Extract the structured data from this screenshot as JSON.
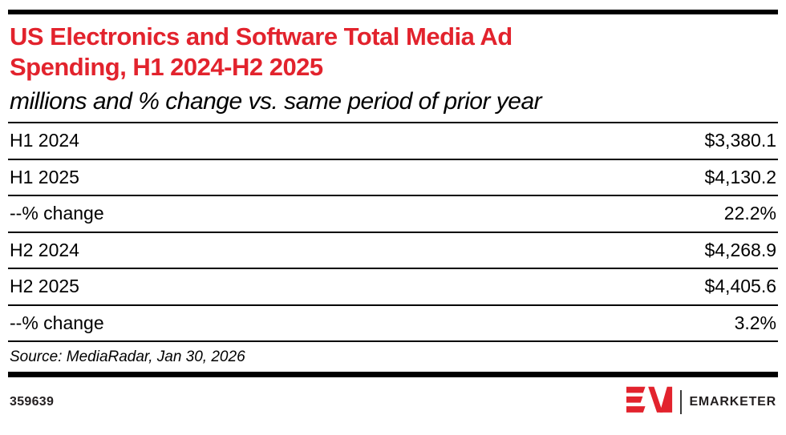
{
  "header": {
    "title_line1": "US Electronics and Software Total Media Ad",
    "title_line2": "Spending, H1 2024-H2 2025",
    "subtitle": "millions and % change vs. same period of prior year"
  },
  "table": {
    "rows": [
      {
        "label": "H1 2024",
        "value": "$3,380.1"
      },
      {
        "label": "H1 2025",
        "value": "$4,130.2"
      },
      {
        "label": "--% change",
        "value": "22.2%"
      },
      {
        "label": "H2 2024",
        "value": "$4,268.9"
      },
      {
        "label": "H2 2025",
        "value": "$4,405.6"
      },
      {
        "label": "--% change",
        "value": "3.2%"
      }
    ]
  },
  "source": "Source: MediaRadar, Jan 30, 2026",
  "footer": {
    "chart_id": "359639",
    "brand_name": "EMARKETER",
    "logo_icon": "emarketer-em-logo"
  },
  "colors": {
    "accent_red": "#e2232d",
    "line_black": "#000000",
    "brand_dark": "#231f20"
  },
  "chart_data": {
    "type": "table",
    "title": "US Electronics and Software Total Media Ad Spending, H1 2024-H2 2025",
    "subtitle": "millions and % change vs. same period of prior year",
    "rows": [
      [
        "H1 2024",
        "$3,380.1"
      ],
      [
        "H1 2025",
        "$4,130.2"
      ],
      [
        "--% change",
        "22.2%"
      ],
      [
        "H2 2024",
        "$4,268.9"
      ],
      [
        "H2 2025",
        "$4,405.6"
      ],
      [
        "--% change",
        "3.2%"
      ]
    ],
    "values_millions": [
      3380.1,
      4130.2,
      4268.9,
      4405.6
    ],
    "pct_change_h1": 22.2,
    "pct_change_h2": 3.2,
    "source": "Source: MediaRadar, Jan 30, 2026"
  }
}
